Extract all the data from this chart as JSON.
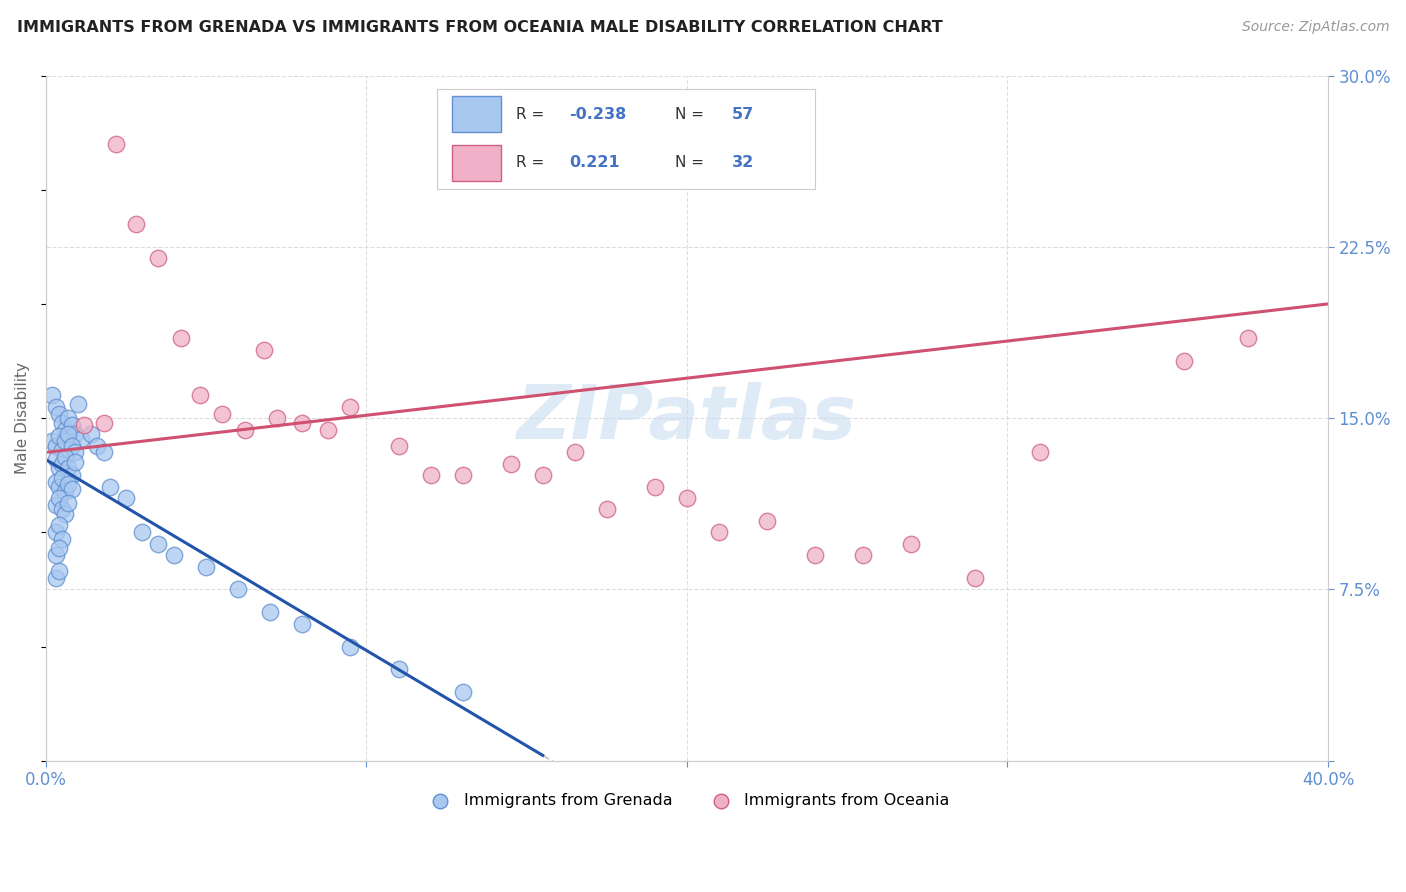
{
  "title": "IMMIGRANTS FROM GRENADA VS IMMIGRANTS FROM OCEANIA MALE DISABILITY CORRELATION CHART",
  "source": "Source: ZipAtlas.com",
  "ylabel": "Male Disability",
  "xlim": [
    0.0,
    0.4
  ],
  "ylim": [
    0.0,
    0.3
  ],
  "color_grenada_fill": "#a8c8f0",
  "color_grenada_edge": "#6090d0",
  "color_oceania_fill": "#f0b0c8",
  "color_oceania_edge": "#d06080",
  "color_grenada_line": "#2255aa",
  "color_oceania_line": "#d05070",
  "color_dashed": "#c8c8c8",
  "color_watermark": "#c8dcf0",
  "bg_color": "#ffffff",
  "grid_color": "#dddddd",
  "title_color": "#222222",
  "tick_color": "#6090d0",
  "figsize": [
    14.06,
    8.92
  ],
  "dpi": 100,
  "grenada_x": [
    0.002,
    0.003,
    0.004,
    0.005,
    0.006,
    0.007,
    0.008,
    0.009,
    0.01,
    0.011,
    0.002,
    0.003,
    0.004,
    0.005,
    0.006,
    0.007,
    0.008,
    0.009,
    0.003,
    0.004,
    0.005,
    0.006,
    0.007,
    0.008,
    0.009,
    0.003,
    0.004,
    0.005,
    0.006,
    0.007,
    0.008,
    0.003,
    0.004,
    0.005,
    0.006,
    0.007,
    0.003,
    0.004,
    0.005,
    0.003,
    0.004,
    0.003,
    0.004,
    0.014,
    0.016,
    0.018,
    0.02,
    0.025,
    0.03,
    0.035,
    0.04,
    0.05,
    0.06,
    0.07,
    0.08,
    0.095,
    0.11,
    0.13
  ],
  "grenada_y": [
    0.16,
    0.155,
    0.152,
    0.148,
    0.145,
    0.15,
    0.147,
    0.143,
    0.156,
    0.141,
    0.14,
    0.138,
    0.142,
    0.136,
    0.14,
    0.143,
    0.138,
    0.135,
    0.132,
    0.128,
    0.13,
    0.133,
    0.128,
    0.125,
    0.131,
    0.122,
    0.12,
    0.124,
    0.118,
    0.121,
    0.119,
    0.112,
    0.115,
    0.11,
    0.108,
    0.113,
    0.1,
    0.103,
    0.097,
    0.09,
    0.093,
    0.08,
    0.083,
    0.143,
    0.138,
    0.135,
    0.12,
    0.115,
    0.1,
    0.095,
    0.09,
    0.085,
    0.075,
    0.065,
    0.06,
    0.05,
    0.04,
    0.03
  ],
  "oceania_x": [
    0.012,
    0.018,
    0.022,
    0.028,
    0.035,
    0.042,
    0.048,
    0.055,
    0.062,
    0.068,
    0.072,
    0.08,
    0.088,
    0.095,
    0.11,
    0.12,
    0.13,
    0.145,
    0.155,
    0.165,
    0.175,
    0.19,
    0.2,
    0.21,
    0.225,
    0.24,
    0.255,
    0.27,
    0.29,
    0.31,
    0.355,
    0.375
  ],
  "oceania_y": [
    0.147,
    0.148,
    0.27,
    0.235,
    0.22,
    0.185,
    0.16,
    0.152,
    0.145,
    0.18,
    0.15,
    0.148,
    0.145,
    0.155,
    0.138,
    0.125,
    0.125,
    0.13,
    0.125,
    0.135,
    0.11,
    0.12,
    0.115,
    0.1,
    0.105,
    0.09,
    0.09,
    0.095,
    0.08,
    0.135,
    0.175,
    0.185
  ]
}
